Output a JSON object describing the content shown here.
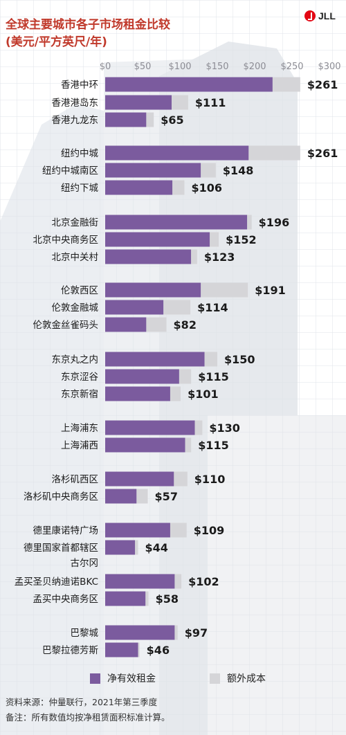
{
  "header": {
    "title_line1": "全球主要城市各子市场租金比较",
    "title_line2": "(美元/平方英尺/年)",
    "logo_text": "JLL"
  },
  "colors": {
    "net_rent": "#7b5b9e",
    "extra_cost": "#d5d5d8",
    "title": "#c0392b",
    "logo": "#e30613"
  },
  "legend": {
    "net_rent_label": "净有效租金",
    "extra_cost_label": "额外成本"
  },
  "footer": {
    "source": "资料来源：仲量联行，2021年第三季度",
    "note": "备注：所有数值均按净租赁面积标准计算。"
  },
  "chart_data": {
    "type": "bar",
    "orientation": "horizontal",
    "stacked": true,
    "xlim": [
      0,
      300
    ],
    "x_ticks": [
      "$0",
      "$50",
      "$100",
      "$150",
      "$200",
      "$250",
      "$300"
    ],
    "x_tick_values": [
      0,
      50,
      100,
      150,
      200,
      250,
      300
    ],
    "grid": false,
    "legend_position": "bottom",
    "series": [
      {
        "name": "净有效租金",
        "values": [
          224,
          89,
          55,
          192,
          128,
          90,
          190,
          140,
          115,
          128,
          78,
          55,
          133,
          99,
          87,
          120,
          107,
          92,
          42,
          87,
          40,
          93,
          54,
          93,
          44
        ]
      },
      {
        "name": "额外成本",
        "values": [
          37,
          22,
          10,
          69,
          20,
          16,
          6,
          12,
          8,
          63,
          36,
          27,
          17,
          16,
          14,
          10,
          8,
          18,
          15,
          22,
          4,
          9,
          4,
          4,
          2
        ]
      }
    ],
    "categories": [
      "香港中环",
      "香港港岛东",
      "香港九龙东",
      "纽约中城",
      "纽约中城南区",
      "纽约下城",
      "北京金融街",
      "北京中央商务区",
      "北京中关村",
      "伦敦西区",
      "伦敦金融城",
      "伦敦金丝雀码头",
      "东京丸之内",
      "东京涩谷",
      "东京新宿",
      "上海浦东",
      "上海浦西",
      "洛杉矶西区",
      "洛杉矶中央商务区",
      "德里康诺特广场",
      "德里国家首都辖区古尔冈",
      "孟买圣贝纳迪诺BKC",
      "孟买中央商务区",
      "巴黎城",
      "巴黎拉德芳斯"
    ],
    "category_labels": [
      [
        "香港中环"
      ],
      [
        "香港港岛东"
      ],
      [
        "香港九龙东"
      ],
      [
        "纽约中城"
      ],
      [
        "纽约中城南区"
      ],
      [
        "纽约下城"
      ],
      [
        "北京金融街"
      ],
      [
        "北京中央商务区"
      ],
      [
        "北京中关村"
      ],
      [
        "伦敦西区"
      ],
      [
        "伦敦金融城"
      ],
      [
        "伦敦金丝雀码头"
      ],
      [
        "东京丸之内"
      ],
      [
        "东京涩谷"
      ],
      [
        "东京新宿"
      ],
      [
        "上海浦东"
      ],
      [
        "上海浦西"
      ],
      [
        "洛杉矶西区"
      ],
      [
        "洛杉矶中央商务区"
      ],
      [
        "德里康诺特广场"
      ],
      [
        "德里国家首都辖区",
        "古尔冈"
      ],
      [
        "孟买圣贝纳迪诺BKC"
      ],
      [
        "孟买中央商务区"
      ],
      [
        "巴黎城"
      ],
      [
        "巴黎拉德芳斯"
      ]
    ],
    "data_labels": [
      "$261",
      "$111",
      "$65",
      "$261",
      "$148",
      "$106",
      "$196",
      "$152",
      "$123",
      "$191",
      "$114",
      "$82",
      "$150",
      "$115",
      "$101",
      "$130",
      "$115",
      "$110",
      "$57",
      "$109",
      "$44",
      "$102",
      "$58",
      "$97",
      "$46"
    ],
    "totals": [
      261,
      111,
      65,
      261,
      148,
      106,
      196,
      152,
      123,
      191,
      114,
      82,
      150,
      115,
      101,
      130,
      115,
      110,
      57,
      109,
      44,
      102,
      58,
      97,
      46
    ]
  }
}
